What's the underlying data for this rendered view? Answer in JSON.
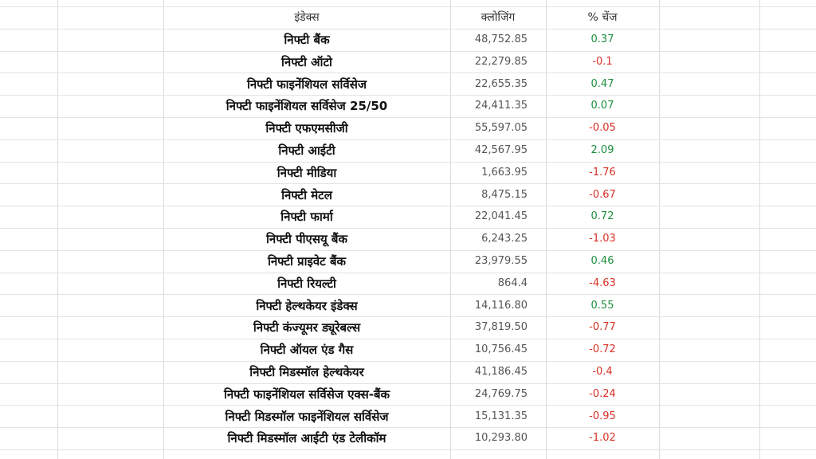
{
  "table": {
    "headers": {
      "index": "इंडेक्स",
      "closing": "क्लोजिंग",
      "change": "% चेंज"
    },
    "colors": {
      "positive": "#1e8e3e",
      "negative": "#d93025",
      "grid": "#dcdcdc"
    },
    "rows": [
      {
        "name": "निफ्टी बैंक",
        "closing": "48,752.85",
        "change": "0.37"
      },
      {
        "name": "निफ्टी ऑटो",
        "closing": "22,279.85",
        "change": "-0.1"
      },
      {
        "name": "निफ्टी फाइनेंशियल सर्विसेज",
        "closing": "22,655.35",
        "change": "0.47"
      },
      {
        "name": "निफ्टी फाइनेंशियल सर्विसेज 25/50",
        "closing": "24,411.35",
        "change": "0.07"
      },
      {
        "name": "निफ्टी एफएमसीजी",
        "closing": "55,597.05",
        "change": "-0.05"
      },
      {
        "name": "निफ्टी आईटी",
        "closing": "42,567.95",
        "change": "2.09"
      },
      {
        "name": "निफ्टी मीडिया",
        "closing": "1,663.95",
        "change": "-1.76"
      },
      {
        "name": "निफ्टी मेटल",
        "closing": "8,475.15",
        "change": "-0.67"
      },
      {
        "name": "निफ्टी फार्मा",
        "closing": "22,041.45",
        "change": "0.72"
      },
      {
        "name": "निफ्टी पीएसयू बैंक",
        "closing": "6,243.25",
        "change": "-1.03"
      },
      {
        "name": "निफ्टी प्राइवेट बैंक",
        "closing": "23,979.55",
        "change": "0.46"
      },
      {
        "name": "निफ्टी रियल्टी",
        "closing": "864.4",
        "change": "-4.63"
      },
      {
        "name": "निफ्टी हेल्थकेयर इंडेक्स",
        "closing": "14,116.80",
        "change": "0.55"
      },
      {
        "name": "निफ्टी कंज्यूमर ड्यूरेबल्स",
        "closing": "37,819.50",
        "change": "-0.77"
      },
      {
        "name": "निफ्टी ऑयल एंड गैस",
        "closing": "10,756.45",
        "change": "-0.72"
      },
      {
        "name": "निफ्टी मिडस्मॉल हेल्थकेयर",
        "closing": "41,186.45",
        "change": "-0.4"
      },
      {
        "name": "निफ्टी फाइनेंशियल सर्विसेज एक्स-बैंक",
        "closing": "24,769.75",
        "change": "-0.24"
      },
      {
        "name": "निफ्टी मिडस्मॉल फाइनेंशियल सर्विसेज",
        "closing": "15,131.35",
        "change": "-0.95"
      },
      {
        "name": "निफ्टी मिडस्मॉल आईटी एंड टेलीकॉम",
        "closing": "10,293.80",
        "change": "-1.02"
      }
    ]
  }
}
